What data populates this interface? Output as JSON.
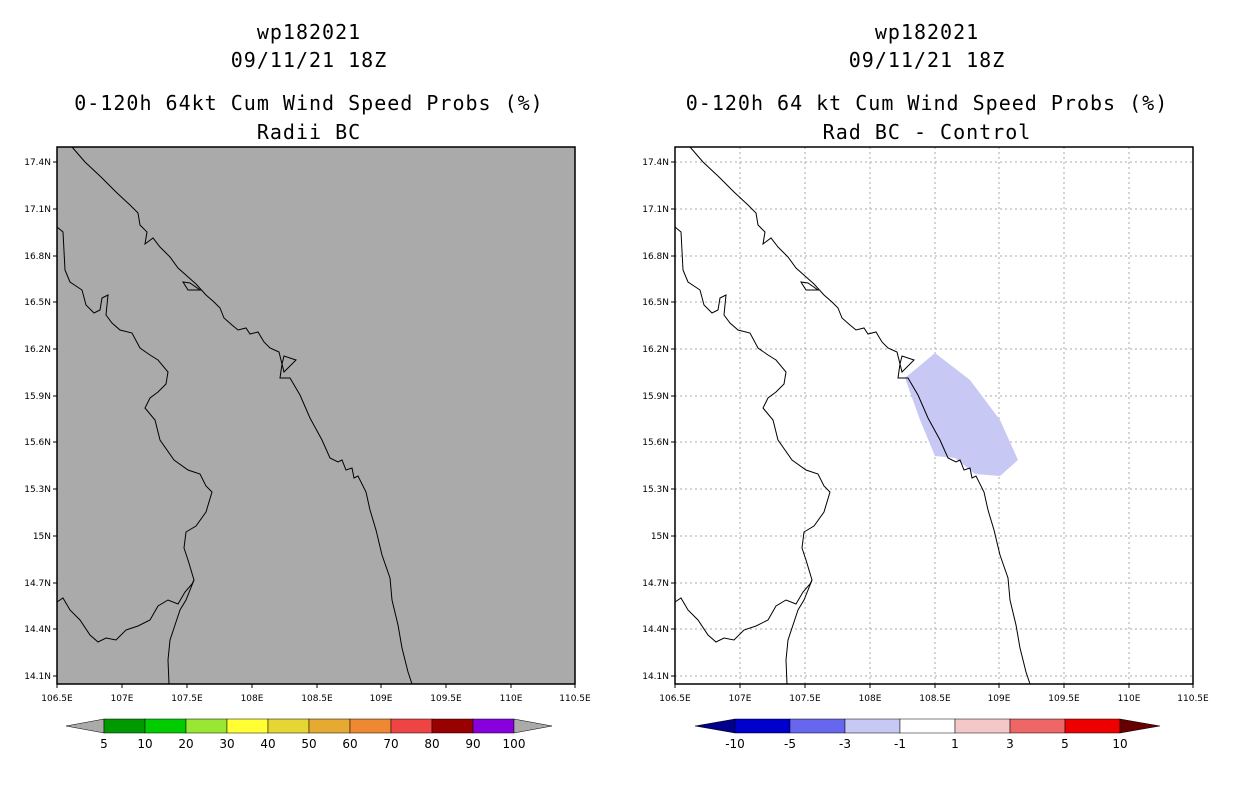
{
  "left": {
    "storm_id": "wp182021",
    "datetime": "09/11/21 18Z",
    "title": "0-120h 64kt Cum Wind Speed Probs (%)",
    "subtitle": "Radii BC",
    "field_color": "#aaaaaa",
    "y_ticks": [
      "17.4N",
      "17.1N",
      "16.8N",
      "16.5N",
      "16.2N",
      "15.9N",
      "15.6N",
      "15.3N",
      "15N",
      "14.7N",
      "14.4N",
      "14.1N"
    ],
    "x_ticks": [
      "106.5E",
      "107E",
      "107.5E",
      "108E",
      "108.5E",
      "109E",
      "109.5E",
      "110E",
      "110.5E"
    ],
    "colorbar": {
      "colors": [
        "#009900",
        "#00cc00",
        "#99e633",
        "#ffff33",
        "#e6d633",
        "#e6aa33",
        "#ee8833",
        "#ee4444",
        "#990000",
        "#8800dd"
      ],
      "labels": [
        "5",
        "10",
        "20",
        "30",
        "40",
        "50",
        "60",
        "70",
        "80",
        "90",
        "100"
      ],
      "end_low": "#aaaaaa",
      "end_high": "#aaaaaa"
    }
  },
  "right": {
    "storm_id": "wp182021",
    "datetime": "09/11/21 18Z",
    "title": "0-120h 64 kt Cum Wind Speed Probs (%)",
    "subtitle": "Rad BC - Control",
    "shade_color": "#c8c8f5",
    "y_ticks": [
      "17.4N",
      "17.1N",
      "16.8N",
      "16.5N",
      "16.2N",
      "15.9N",
      "15.6N",
      "15.3N",
      "15N",
      "14.7N",
      "14.4N",
      "14.1N"
    ],
    "x_ticks": [
      "106.5E",
      "107E",
      "107.5E",
      "108E",
      "108.5E",
      "109E",
      "109.5E",
      "110E",
      "110.5E"
    ],
    "colorbar": {
      "colors": [
        "#0000cc",
        "#6666ee",
        "#c8c8f5",
        "#ffffff",
        "#f5c8c8",
        "#ee6666",
        "#ee0000"
      ],
      "labels": [
        "-10",
        "-5",
        "-3",
        "-1",
        "1",
        "3",
        "5",
        "10"
      ],
      "end_low": "#00008b",
      "end_high": "#660000"
    }
  }
}
